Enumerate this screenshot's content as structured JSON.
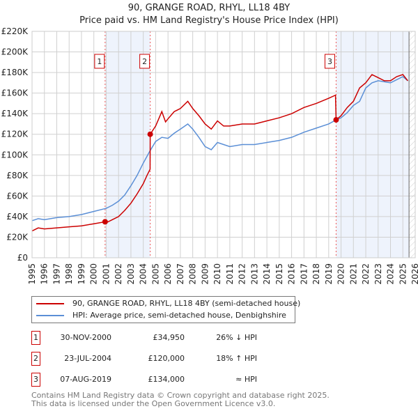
{
  "chart_data": {
    "type": "line",
    "title": "90, GRANGE ROAD, RHYL, LL18 4BY",
    "subtitle": "Price paid vs. HM Land Registry's House Price Index (HPI)",
    "xlim": [
      1995,
      2026
    ],
    "ylim": [
      0,
      220000
    ],
    "x_ticks": [
      "1995",
      "1996",
      "1997",
      "1998",
      "1999",
      "2000",
      "2001",
      "2002",
      "2003",
      "2004",
      "2005",
      "2006",
      "2007",
      "2008",
      "2009",
      "2010",
      "2011",
      "2012",
      "2013",
      "2014",
      "2015",
      "2016",
      "2017",
      "2018",
      "2019",
      "2020",
      "2021",
      "2022",
      "2023",
      "2024",
      "2025",
      "2026"
    ],
    "y_ticks": [
      {
        "v": 0,
        "label": "£0"
      },
      {
        "v": 20000,
        "label": "£20K"
      },
      {
        "v": 40000,
        "label": "£40K"
      },
      {
        "v": 60000,
        "label": "£60K"
      },
      {
        "v": 80000,
        "label": "£80K"
      },
      {
        "v": 100000,
        "label": "£100K"
      },
      {
        "v": 120000,
        "label": "£120K"
      },
      {
        "v": 140000,
        "label": "£140K"
      },
      {
        "v": 160000,
        "label": "£160K"
      },
      {
        "v": 180000,
        "label": "£180K"
      },
      {
        "v": 200000,
        "label": "£200K"
      },
      {
        "v": 220000,
        "label": "£220K"
      }
    ],
    "grid": true,
    "shaded_ranges": [
      [
        2000.91,
        2004.56
      ],
      [
        2019.6,
        2025.5
      ]
    ],
    "future_hatch_from": 2025.5,
    "series": [
      {
        "name": "90, GRANGE ROAD, RHYL, LL18 4BY (semi-detached house)",
        "color": "#cc0000",
        "x": [
          1995,
          1995.5,
          1996,
          1997,
          1998,
          1999,
          2000,
          2000.91,
          2001,
          2001.5,
          2002,
          2002.5,
          2003,
          2003.5,
          2004,
          2004.3,
          2004.55,
          2004.56,
          2005,
          2005.5,
          2005.8,
          2006,
          2006.5,
          2007,
          2007.6,
          2008,
          2008.5,
          2009,
          2009.5,
          2010,
          2010.5,
          2011,
          2012,
          2013,
          2014,
          2015,
          2016,
          2017,
          2018,
          2019,
          2019.55,
          2019.6,
          2020,
          2020.5,
          2021,
          2021.5,
          2022,
          2022.5,
          2023,
          2023.5,
          2024,
          2024.5,
          2025,
          2025.4
        ],
        "y": [
          26000,
          29000,
          28000,
          29000,
          30000,
          31000,
          33000,
          34950,
          34000,
          37000,
          40000,
          46000,
          53000,
          62000,
          72000,
          80000,
          86000,
          120000,
          128000,
          142000,
          132000,
          135000,
          142000,
          145000,
          152000,
          145000,
          138000,
          130000,
          125000,
          133000,
          128000,
          128000,
          130000,
          130000,
          133000,
          136000,
          140000,
          146000,
          150000,
          155000,
          158000,
          134000,
          138000,
          146000,
          152000,
          165000,
          170000,
          178000,
          175000,
          172000,
          172000,
          176000,
          178000,
          172000
        ]
      },
      {
        "name": "HPI: Average price, semi-detached house, Denbighshire",
        "color": "#5b8fd6",
        "x": [
          1995,
          1995.5,
          1996,
          1997,
          1998,
          1999,
          2000,
          2001,
          2001.5,
          2002,
          2002.5,
          2003,
          2003.5,
          2004,
          2004.5,
          2005,
          2005.5,
          2006,
          2006.5,
          2007,
          2007.6,
          2008,
          2008.5,
          2009,
          2009.5,
          2010,
          2010.5,
          2011,
          2012,
          2013,
          2014,
          2015,
          2016,
          2017,
          2018,
          2019,
          2019.6,
          2020,
          2020.5,
          2021,
          2021.5,
          2022,
          2022.5,
          2023,
          2023.5,
          2024,
          2024.5,
          2025,
          2025.4
        ],
        "y": [
          36000,
          38000,
          37000,
          39000,
          40000,
          42000,
          45000,
          48000,
          51000,
          55000,
          61000,
          70000,
          80000,
          92000,
          103000,
          113000,
          117000,
          116000,
          121000,
          125000,
          130000,
          125000,
          117000,
          108000,
          105000,
          112000,
          110000,
          108000,
          110000,
          110000,
          112000,
          114000,
          117000,
          122000,
          126000,
          130000,
          134000,
          136000,
          141000,
          148000,
          152000,
          165000,
          170000,
          172000,
          171000,
          170000,
          173000,
          176000,
          172000
        ]
      }
    ],
    "sales": [
      {
        "label": "1",
        "x": 2000.91,
        "y": 34950
      },
      {
        "label": "2",
        "x": 2004.56,
        "y": 120000
      },
      {
        "label": "3",
        "x": 2019.6,
        "y": 134000
      }
    ]
  },
  "legend": {
    "property": "90, GRANGE ROAD, RHYL, LL18 4BY (semi-detached house)",
    "hpi": "HPI: Average price, semi-detached house, Denbighshire"
  },
  "transactions": [
    {
      "num": "1",
      "date": "30-NOV-2000",
      "price": "£34,950",
      "hpi": "26% ↓ HPI"
    },
    {
      "num": "2",
      "date": "23-JUL-2004",
      "price": "£120,000",
      "hpi": "18% ↑ HPI"
    },
    {
      "num": "3",
      "date": "07-AUG-2019",
      "price": "£134,000",
      "hpi": "≈ HPI"
    }
  ],
  "footer": {
    "line1": "Contains HM Land Registry data © Crown copyright and database right 2025.",
    "line2": "This data is licensed under the Open Government Licence v3.0."
  }
}
